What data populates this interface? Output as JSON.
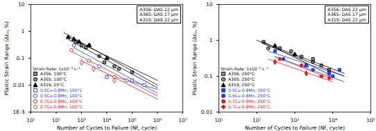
{
  "chart_data": [
    {
      "type": "scatter",
      "x_label": "Number of Cycles to Failure (Nf, cycle)",
      "y_label": "Plastic Strain Range (Δεₚ, %)",
      "log": true,
      "xlim": [
        10,
        10000000
      ],
      "ylim": [
        0.001,
        10
      ],
      "xticks": [
        {
          "value": 10,
          "label": "10¹"
        },
        {
          "value": 100,
          "label": "10²"
        },
        {
          "value": 1000,
          "label": "10³"
        },
        {
          "value": 10000,
          "label": "10⁴"
        },
        {
          "value": 100000,
          "label": "10⁵"
        },
        {
          "value": 1000000,
          "label": "10⁶"
        },
        {
          "value": 10000000,
          "label": "10⁷"
        }
      ],
      "yticks": [
        {
          "value": 0.001,
          "label": "1E-3"
        },
        0.01,
        0.1,
        1,
        10
      ],
      "legend": "bottom-left",
      "legend_title": "Strain Rate: 1x10⁻³ s⁻¹",
      "annotations": [
        "A356: DAS 22 μm",
        "A365: DAS 17 μm",
        "A319: DAS 22 μm"
      ],
      "series": [
        {
          "name": "A356, 100°C",
          "color": "#000000",
          "marker": "half-square",
          "x": [
            1000,
            1500,
            8000,
            20000,
            100000
          ],
          "values": [
            0.3,
            0.25,
            0.07,
            0.05,
            0.03
          ],
          "fit": {
            "x": [
              300,
              1000000
            ],
            "values": [
              0.6,
              0.015
            ]
          }
        },
        {
          "name": "A365, 100°C",
          "color": "#000000",
          "marker": "half-circle",
          "x": [
            600,
            2000,
            5000,
            30000
          ],
          "values": [
            0.4,
            0.3,
            0.12,
            0.04
          ],
          "fit": {
            "x": [
              300,
              1000000
            ],
            "values": [
              0.5,
              0.008
            ]
          }
        },
        {
          "name": "A319, 25°C",
          "color": "#000000",
          "marker": "filled-triangle",
          "x": [
            300,
            500,
            800,
            2000,
            10000
          ],
          "values": [
            0.6,
            0.5,
            0.4,
            0.3,
            0.1
          ],
          "fit": {
            "x": [
              200,
              1000000
            ],
            "values": [
              0.9,
              0.01
            ]
          }
        },
        {
          "name": "0.5Cu-0.8Mn, 100°C",
          "color": "#1f3fd6",
          "marker": "open-square",
          "x": [
            10000,
            100000,
            300000
          ],
          "values": [
            0.02,
            0.015,
            0.01
          ],
          "fit": {
            "x": [
              10000,
              1000000
            ],
            "values": [
              0.025,
              0.007
            ]
          }
        },
        {
          "name": "0.5Cu-0.8Mn, 100°C",
          "color": "#1f3fd6",
          "marker": "open-circle",
          "x": [
            500,
            5000,
            60000
          ],
          "values": [
            0.3,
            0.05,
            0.015
          ],
          "fit": {
            "x": [
              500,
              1000000
            ],
            "values": [
              0.25,
              0.005
            ]
          }
        },
        {
          "name": "0.7Cu-0.8Mn, 100°C",
          "color": "#e02020",
          "marker": "open-circle",
          "x": [
            400,
            2000,
            20000
          ],
          "values": [
            0.2,
            0.08,
            0.02
          ],
          "fit": {
            "x": [
              400,
              1000000
            ],
            "values": [
              0.18,
              0.004
            ]
          }
        },
        {
          "name": "0.7Cu-0.8Mn, 100°C",
          "color": "#e02020",
          "marker": "open-diamond",
          "x": [
            1000,
            3000,
            20000
          ],
          "values": [
            0.07,
            0.04,
            0.015
          ],
          "fit": {
            "x": [
              1000,
              1000000
            ],
            "values": [
              0.08,
              0.003
            ]
          }
        }
      ]
    },
    {
      "type": "scatter",
      "x_label": "Number of Cycles to Failure (Nf, cycle)",
      "y_label": "Plastic Strain Range (Δεₚ, %)",
      "log": true,
      "xlim": [
        10,
        100000
      ],
      "ylim": [
        0.01,
        10
      ],
      "xticks": [
        {
          "value": 10,
          "label": "10¹"
        },
        {
          "value": 100,
          "label": "10²"
        },
        {
          "value": 1000,
          "label": "10³"
        },
        {
          "value": 10000,
          "label": "10⁴"
        },
        {
          "value": 100000,
          "label": "10⁵"
        }
      ],
      "yticks": [
        0.01,
        0.1,
        1,
        10
      ],
      "legend": "bottom-left",
      "legend_title": "Strain Rate: 1x10⁻³ s⁻¹",
      "annotations": [
        "A356: DAS 22 μm",
        "A365: DAS 17 μm",
        "A319: DAS 22 μm"
      ],
      "series": [
        {
          "name": "A356, 250°C",
          "color": "#000000",
          "marker": "half-square",
          "x": [
            150,
            400,
            1500,
            3000,
            8000
          ],
          "values": [
            0.9,
            0.6,
            0.35,
            0.3,
            0.15
          ],
          "fit": {
            "x": [
              100,
              20000
            ],
            "values": [
              1.0,
              0.12
            ]
          }
        },
        {
          "name": "A365, 250°C",
          "color": "#000000",
          "marker": "half-circle",
          "x": [
            200,
            800,
            3000,
            5000
          ],
          "values": [
            0.6,
            0.5,
            0.25,
            0.2
          ],
          "fit": {
            "x": [
              150,
              20000
            ],
            "values": [
              0.8,
              0.1
            ]
          }
        },
        {
          "name": "A319, 250°C",
          "color": "#000000",
          "marker": "filled-triangle",
          "x": [
            300,
            1000,
            2000
          ],
          "values": [
            0.7,
            0.4,
            0.2
          ],
          "fit": {
            "x": [
              150,
              10000
            ],
            "values": [
              0.9,
              0.1
            ]
          }
        },
        {
          "name": "0.5Cu-0.8Mn, 250°C",
          "color": "#1f3fd6",
          "marker": "filled-square",
          "x": [
            300,
            2000,
            8000,
            15000
          ],
          "values": [
            0.5,
            0.2,
            0.12,
            0.15
          ],
          "fit": {
            "x": [
              200,
              20000
            ],
            "values": [
              0.5,
              0.1
            ]
          }
        },
        {
          "name": "0.5Cu-0.8Mn, 250°C",
          "color": "#1f3fd6",
          "marker": "filled-circle",
          "x": [
            500,
            3000,
            10000
          ],
          "values": [
            0.3,
            0.15,
            0.1
          ],
          "fit": {
            "x": [
              300,
              20000
            ],
            "values": [
              0.35,
              0.07
            ]
          }
        },
        {
          "name": "0.7Cu-0.8Mn, 250°C",
          "color": "#e02020",
          "marker": "filled-circle",
          "x": [
            400,
            1500,
            5000
          ],
          "values": [
            0.3,
            0.2,
            0.1
          ],
          "fit": {
            "x": [
              300,
              10000
            ],
            "values": [
              0.35,
              0.08
            ]
          }
        },
        {
          "name": "0.7Cu-0.8Mn, 250°C",
          "color": "#e02020",
          "marker": "filled-diamond",
          "x": [
            300,
            2000,
            8000
          ],
          "values": [
            0.25,
            0.12,
            0.09
          ],
          "fit": {
            "x": [
              200,
              10000
            ],
            "values": [
              0.3,
              0.07
            ]
          }
        }
      ]
    }
  ]
}
